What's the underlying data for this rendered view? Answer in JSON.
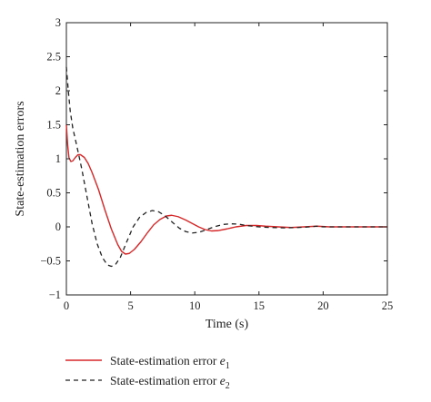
{
  "chart_data": {
    "type": "line",
    "xlabel": "Time (s)",
    "ylabel": "State-estimation errors",
    "xlim": [
      0,
      25
    ],
    "ylim": [
      -1,
      3
    ],
    "xticks": [
      0,
      5,
      10,
      15,
      20,
      25
    ],
    "yticks": [
      -1,
      -0.5,
      0,
      0.5,
      1,
      1.5,
      2,
      2.5,
      3
    ],
    "xtick_labels": [
      "0",
      "5",
      "10",
      "15",
      "20",
      "25"
    ],
    "ytick_labels": [
      "−1",
      "−0.5",
      "0",
      "0.5",
      "1",
      "1.5",
      "2",
      "2.5",
      "3"
    ],
    "grid": false,
    "legend_position": "below-plot",
    "series": [
      {
        "name_text": "State-estimation error ",
        "name_var": "e",
        "name_sub": "1",
        "color": "#d62728",
        "style": "solid",
        "points": [
          [
            0,
            1.5
          ],
          [
            0.1,
            1.2
          ],
          [
            0.2,
            1.02
          ],
          [
            0.35,
            0.96
          ],
          [
            0.5,
            0.97
          ],
          [
            0.7,
            1.02
          ],
          [
            0.9,
            1.06
          ],
          [
            1.1,
            1.06
          ],
          [
            1.4,
            1.02
          ],
          [
            1.7,
            0.93
          ],
          [
            2.0,
            0.8
          ],
          [
            2.5,
            0.55
          ],
          [
            3.0,
            0.25
          ],
          [
            3.5,
            -0.03
          ],
          [
            4.0,
            -0.26
          ],
          [
            4.3,
            -0.36
          ],
          [
            4.6,
            -0.4
          ],
          [
            4.9,
            -0.39
          ],
          [
            5.3,
            -0.33
          ],
          [
            5.8,
            -0.22
          ],
          [
            6.3,
            -0.09
          ],
          [
            6.8,
            0.03
          ],
          [
            7.3,
            0.11
          ],
          [
            7.8,
            0.16
          ],
          [
            8.2,
            0.17
          ],
          [
            8.7,
            0.15
          ],
          [
            9.3,
            0.1
          ],
          [
            9.8,
            0.05
          ],
          [
            10.3,
            0.0
          ],
          [
            10.8,
            -0.04
          ],
          [
            11.3,
            -0.06
          ],
          [
            11.8,
            -0.055
          ],
          [
            12.5,
            -0.03
          ],
          [
            13.2,
            0.0
          ],
          [
            14.0,
            0.02
          ],
          [
            14.8,
            0.02
          ],
          [
            15.5,
            0.01
          ],
          [
            16.5,
            0.0
          ],
          [
            17.5,
            -0.01
          ],
          [
            18.5,
            0.0
          ],
          [
            19.5,
            0.01
          ],
          [
            20.5,
            0.0
          ],
          [
            22,
            0.0
          ],
          [
            25,
            0.0
          ]
        ]
      },
      {
        "name_text": "State-estimation error ",
        "name_var": "e",
        "name_sub": "2",
        "color": "#222222",
        "style": "dashed",
        "points": [
          [
            0,
            2.35
          ],
          [
            0.15,
            2.0
          ],
          [
            0.3,
            1.7
          ],
          [
            0.5,
            1.45
          ],
          [
            0.8,
            1.2
          ],
          [
            1.2,
            0.85
          ],
          [
            1.6,
            0.45
          ],
          [
            2.0,
            0.05
          ],
          [
            2.4,
            -0.25
          ],
          [
            2.8,
            -0.45
          ],
          [
            3.2,
            -0.56
          ],
          [
            3.5,
            -0.58
          ],
          [
            3.8,
            -0.56
          ],
          [
            4.2,
            -0.45
          ],
          [
            4.7,
            -0.22
          ],
          [
            5.2,
            0.0
          ],
          [
            5.7,
            0.14
          ],
          [
            6.2,
            0.21
          ],
          [
            6.7,
            0.24
          ],
          [
            7.2,
            0.22
          ],
          [
            7.7,
            0.16
          ],
          [
            8.3,
            0.06
          ],
          [
            8.8,
            -0.02
          ],
          [
            9.3,
            -0.07
          ],
          [
            9.8,
            -0.09
          ],
          [
            10.3,
            -0.08
          ],
          [
            10.8,
            -0.05
          ],
          [
            11.5,
            0.0
          ],
          [
            12.2,
            0.035
          ],
          [
            12.8,
            0.045
          ],
          [
            13.4,
            0.04
          ],
          [
            14.0,
            0.02
          ],
          [
            15.0,
            0.0
          ],
          [
            16.0,
            -0.01
          ],
          [
            17.0,
            -0.015
          ],
          [
            18.0,
            -0.01
          ],
          [
            19.0,
            0.0
          ],
          [
            19.5,
            0.01
          ],
          [
            20.0,
            0.0
          ],
          [
            21.0,
            0.0
          ],
          [
            25,
            0.0
          ]
        ]
      }
    ]
  }
}
